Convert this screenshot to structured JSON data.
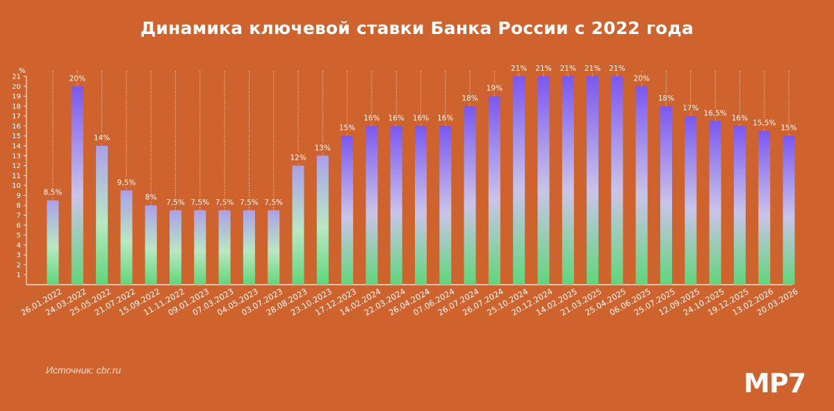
{
  "title": "Динамика ключевой ставки Банка России с 2022 года",
  "source": "Источник: cbr.ru",
  "logo": "MP7",
  "colors": {
    "background": "#cf632d",
    "text": "#ffffff",
    "bar_top_high": "#7b57f0",
    "bar_mid": "#c9c4ea",
    "bar_bottom": "#5fd77a"
  },
  "chart_data": {
    "type": "bar",
    "title": "Динамика ключевой ставки Банка России с 2022 года",
    "ylabel": "%",
    "ylim": [
      0,
      21
    ],
    "yticks": [
      1,
      2,
      3,
      4,
      5,
      6,
      7,
      8,
      9,
      10,
      11,
      12,
      13,
      14,
      15,
      16,
      17,
      18,
      19,
      20,
      21
    ],
    "grid": false,
    "categories": [
      "26.01.2022",
      "24.03.2022",
      "25.05.2022",
      "21.07.2022",
      "15.09.2022",
      "11.11.2022",
      "09.01.2023",
      "07.03.2023",
      "04.05.2023",
      "03.07.2023",
      "28.08.2023",
      "23.10.2023",
      "17.12.2023",
      "14.02.2024",
      "22.03.2024",
      "26.04.2024",
      "07.06.2024",
      "26.07.2024",
      "26.07.2024",
      "25.10.2024",
      "20.12.2024",
      "14.02.2025",
      "21.03.2025",
      "25.04.2025",
      "06.06.2025",
      "25.07.2025",
      "12.09.2025",
      "24.10.2025",
      "19.12.2025",
      "13.02.2026",
      "20.03.2026"
    ],
    "values": [
      8.5,
      20,
      14,
      9.5,
      8,
      7.5,
      7.5,
      7.5,
      7.5,
      7.5,
      12,
      13,
      15,
      16,
      16,
      16,
      16,
      18,
      19,
      21,
      21,
      21,
      21,
      21,
      20,
      18,
      17,
      16.5,
      16,
      15.5,
      15
    ],
    "labels": [
      "8,5%",
      "20%",
      "14%",
      "9,5%",
      "8%",
      "7,5%",
      "7,5%",
      "7,5%",
      "7,5%",
      "7,5%",
      "12%",
      "13%",
      "15%",
      "16%",
      "16%",
      "16%",
      "16%",
      "18%",
      "19%",
      "21%",
      "21%",
      "21%",
      "21%",
      "21%",
      "20%",
      "18%",
      "17%",
      "16,5%",
      "16%",
      "15,5%",
      "15%"
    ]
  }
}
